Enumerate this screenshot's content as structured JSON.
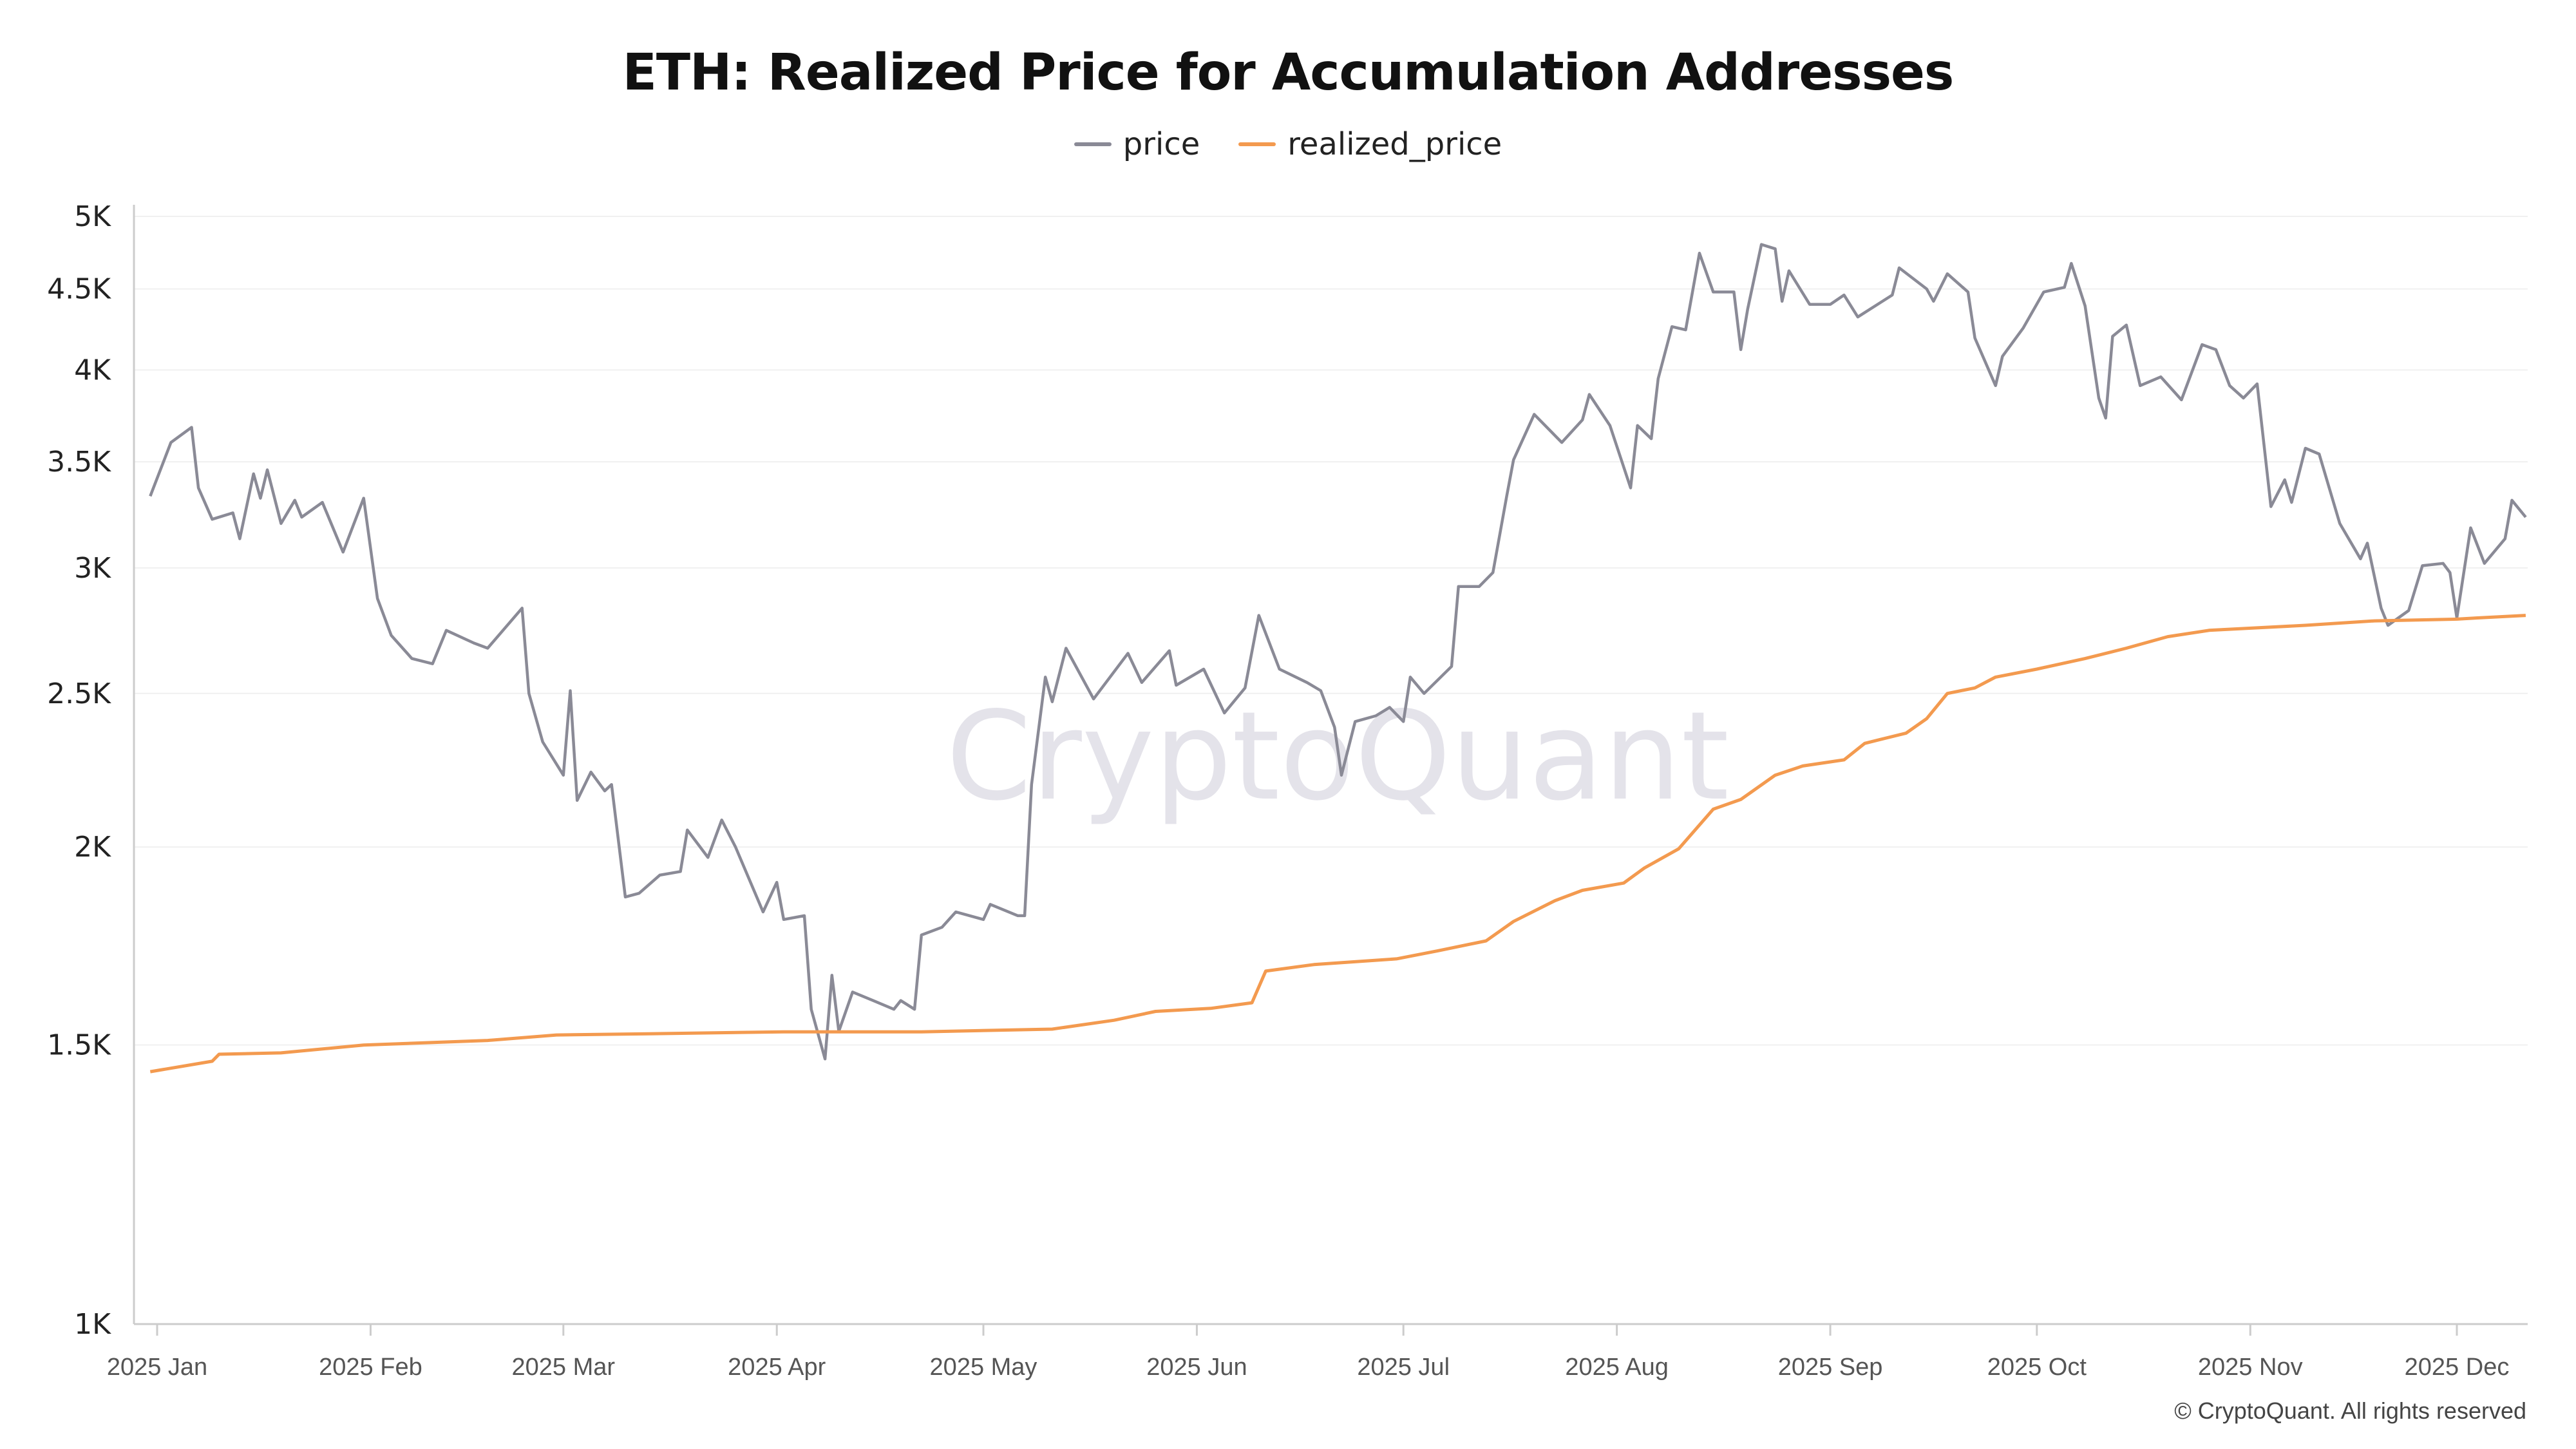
{
  "chart_data": {
    "type": "line",
    "title": "ETH: Realized Price for Accumulation Addresses",
    "y_scale": "log",
    "ylim": [
      1000,
      5000
    ],
    "xlim": [
      "2024-12-31",
      "2025-12-11"
    ],
    "grid": true,
    "legend_placement": "top",
    "y_ticks": [
      {
        "v": 1000,
        "label": "1K"
      },
      {
        "v": 1500,
        "label": "1.5K"
      },
      {
        "v": 2000,
        "label": "2K"
      },
      {
        "v": 2500,
        "label": "2.5K"
      },
      {
        "v": 3000,
        "label": "3K"
      },
      {
        "v": 3500,
        "label": "3.5K"
      },
      {
        "v": 4000,
        "label": "4K"
      },
      {
        "v": 4500,
        "label": "4.5K"
      },
      {
        "v": 5000,
        "label": "5K"
      }
    ],
    "x_ticks": [
      {
        "d": "2025-01-01",
        "label": "2025 Jan"
      },
      {
        "d": "2025-02-01",
        "label": "2025 Feb"
      },
      {
        "d": "2025-03-01",
        "label": "2025 Mar"
      },
      {
        "d": "2025-04-01",
        "label": "2025 Apr"
      },
      {
        "d": "2025-05-01",
        "label": "2025 May"
      },
      {
        "d": "2025-06-01",
        "label": "2025 Jun"
      },
      {
        "d": "2025-07-01",
        "label": "2025 Jul"
      },
      {
        "d": "2025-08-01",
        "label": "2025 Aug"
      },
      {
        "d": "2025-09-01",
        "label": "2025 Sep"
      },
      {
        "d": "2025-10-01",
        "label": "2025 Oct"
      },
      {
        "d": "2025-11-01",
        "label": "2025 Nov"
      },
      {
        "d": "2025-12-01",
        "label": "2025 Dec"
      }
    ],
    "series": [
      {
        "name": "price",
        "color": "#8a8a96",
        "points": [
          [
            "2024-12-31",
            3330
          ],
          [
            "2025-01-03",
            3600
          ],
          [
            "2025-01-06",
            3680
          ],
          [
            "2025-01-07",
            3370
          ],
          [
            "2025-01-09",
            3220
          ],
          [
            "2025-01-12",
            3250
          ],
          [
            "2025-01-13",
            3130
          ],
          [
            "2025-01-15",
            3440
          ],
          [
            "2025-01-16",
            3320
          ],
          [
            "2025-01-17",
            3460
          ],
          [
            "2025-01-19",
            3200
          ],
          [
            "2025-01-21",
            3310
          ],
          [
            "2025-01-22",
            3230
          ],
          [
            "2025-01-25",
            3300
          ],
          [
            "2025-01-28",
            3070
          ],
          [
            "2025-01-31",
            3320
          ],
          [
            "2025-02-02",
            2870
          ],
          [
            "2025-02-04",
            2720
          ],
          [
            "2025-02-07",
            2630
          ],
          [
            "2025-02-10",
            2610
          ],
          [
            "2025-02-12",
            2740
          ],
          [
            "2025-02-16",
            2690
          ],
          [
            "2025-02-18",
            2670
          ],
          [
            "2025-02-23",
            2830
          ],
          [
            "2025-02-24",
            2500
          ],
          [
            "2025-02-26",
            2330
          ],
          [
            "2025-03-01",
            2220
          ],
          [
            "2025-03-02",
            2510
          ],
          [
            "2025-03-03",
            2140
          ],
          [
            "2025-03-05",
            2230
          ],
          [
            "2025-03-07",
            2170
          ],
          [
            "2025-03-08",
            2190
          ],
          [
            "2025-03-10",
            1860
          ],
          [
            "2025-03-12",
            1870
          ],
          [
            "2025-03-15",
            1920
          ],
          [
            "2025-03-18",
            1930
          ],
          [
            "2025-03-19",
            2050
          ],
          [
            "2025-03-22",
            1970
          ],
          [
            "2025-03-24",
            2080
          ],
          [
            "2025-03-26",
            2000
          ],
          [
            "2025-03-30",
            1820
          ],
          [
            "2025-04-01",
            1900
          ],
          [
            "2025-04-02",
            1800
          ],
          [
            "2025-04-05",
            1810
          ],
          [
            "2025-04-06",
            1580
          ],
          [
            "2025-04-08",
            1470
          ],
          [
            "2025-04-09",
            1660
          ],
          [
            "2025-04-10",
            1530
          ],
          [
            "2025-04-12",
            1620
          ],
          [
            "2025-04-15",
            1600
          ],
          [
            "2025-04-18",
            1580
          ],
          [
            "2025-04-19",
            1600
          ],
          [
            "2025-04-21",
            1580
          ],
          [
            "2025-04-22",
            1760
          ],
          [
            "2025-04-25",
            1780
          ],
          [
            "2025-04-27",
            1820
          ],
          [
            "2025-05-01",
            1800
          ],
          [
            "2025-05-02",
            1840
          ],
          [
            "2025-05-06",
            1810
          ],
          [
            "2025-05-07",
            1810
          ],
          [
            "2025-05-08",
            2190
          ],
          [
            "2025-05-10",
            2560
          ],
          [
            "2025-05-11",
            2470
          ],
          [
            "2025-05-13",
            2670
          ],
          [
            "2025-05-17",
            2480
          ],
          [
            "2025-05-22",
            2650
          ],
          [
            "2025-05-24",
            2540
          ],
          [
            "2025-05-28",
            2660
          ],
          [
            "2025-05-29",
            2530
          ],
          [
            "2025-06-02",
            2590
          ],
          [
            "2025-06-05",
            2430
          ],
          [
            "2025-06-08",
            2520
          ],
          [
            "2025-06-10",
            2800
          ],
          [
            "2025-06-13",
            2590
          ],
          [
            "2025-06-17",
            2540
          ],
          [
            "2025-06-19",
            2510
          ],
          [
            "2025-06-21",
            2380
          ],
          [
            "2025-06-22",
            2220
          ],
          [
            "2025-06-24",
            2400
          ],
          [
            "2025-06-27",
            2420
          ],
          [
            "2025-06-29",
            2450
          ],
          [
            "2025-07-01",
            2400
          ],
          [
            "2025-07-02",
            2560
          ],
          [
            "2025-07-04",
            2500
          ],
          [
            "2025-07-08",
            2600
          ],
          [
            "2025-07-09",
            2920
          ],
          [
            "2025-07-12",
            2920
          ],
          [
            "2025-07-14",
            2980
          ],
          [
            "2025-07-16",
            3330
          ],
          [
            "2025-07-17",
            3510
          ],
          [
            "2025-07-20",
            3750
          ],
          [
            "2025-07-24",
            3600
          ],
          [
            "2025-07-27",
            3720
          ],
          [
            "2025-07-28",
            3860
          ],
          [
            "2025-07-31",
            3690
          ],
          [
            "2025-08-03",
            3370
          ],
          [
            "2025-08-04",
            3690
          ],
          [
            "2025-08-06",
            3620
          ],
          [
            "2025-08-07",
            3950
          ],
          [
            "2025-08-09",
            4260
          ],
          [
            "2025-08-11",
            4240
          ],
          [
            "2025-08-13",
            4740
          ],
          [
            "2025-08-15",
            4480
          ],
          [
            "2025-08-18",
            4480
          ],
          [
            "2025-08-19",
            4120
          ],
          [
            "2025-08-20",
            4370
          ],
          [
            "2025-08-22",
            4800
          ],
          [
            "2025-08-24",
            4770
          ],
          [
            "2025-08-25",
            4420
          ],
          [
            "2025-08-26",
            4620
          ],
          [
            "2025-08-29",
            4400
          ],
          [
            "2025-09-01",
            4400
          ],
          [
            "2025-09-03",
            4460
          ],
          [
            "2025-09-05",
            4320
          ],
          [
            "2025-09-10",
            4460
          ],
          [
            "2025-09-11",
            4640
          ],
          [
            "2025-09-15",
            4500
          ],
          [
            "2025-09-16",
            4420
          ],
          [
            "2025-09-18",
            4600
          ],
          [
            "2025-09-21",
            4480
          ],
          [
            "2025-09-22",
            4190
          ],
          [
            "2025-09-25",
            3910
          ],
          [
            "2025-09-26",
            4080
          ],
          [
            "2025-09-29",
            4250
          ],
          [
            "2025-10-02",
            4480
          ],
          [
            "2025-10-05",
            4510
          ],
          [
            "2025-10-06",
            4670
          ],
          [
            "2025-10-08",
            4390
          ],
          [
            "2025-10-10",
            3840
          ],
          [
            "2025-10-11",
            3730
          ],
          [
            "2025-10-12",
            4200
          ],
          [
            "2025-10-14",
            4270
          ],
          [
            "2025-10-16",
            3910
          ],
          [
            "2025-10-19",
            3960
          ],
          [
            "2025-10-22",
            3830
          ],
          [
            "2025-10-25",
            4150
          ],
          [
            "2025-10-27",
            4120
          ],
          [
            "2025-10-29",
            3910
          ],
          [
            "2025-10-31",
            3840
          ],
          [
            "2025-11-02",
            3920
          ],
          [
            "2025-11-04",
            3280
          ],
          [
            "2025-11-06",
            3410
          ],
          [
            "2025-11-07",
            3300
          ],
          [
            "2025-11-09",
            3570
          ],
          [
            "2025-11-11",
            3540
          ],
          [
            "2025-11-14",
            3200
          ],
          [
            "2025-11-17",
            3040
          ],
          [
            "2025-11-18",
            3110
          ],
          [
            "2025-11-20",
            2830
          ],
          [
            "2025-11-21",
            2760
          ],
          [
            "2025-11-24",
            2820
          ],
          [
            "2025-11-26",
            3010
          ],
          [
            "2025-11-29",
            3020
          ],
          [
            "2025-11-30",
            2980
          ],
          [
            "2025-12-01",
            2790
          ],
          [
            "2025-12-03",
            3180
          ],
          [
            "2025-12-05",
            3020
          ],
          [
            "2025-12-08",
            3130
          ],
          [
            "2025-12-09",
            3310
          ],
          [
            "2025-12-11",
            3230
          ]
        ]
      },
      {
        "name": "realized_price",
        "color": "#f39a4f",
        "points": [
          [
            "2024-12-31",
            1443
          ],
          [
            "2025-01-09",
            1465
          ],
          [
            "2025-01-10",
            1480
          ],
          [
            "2025-01-19",
            1483
          ],
          [
            "2025-01-31",
            1500
          ],
          [
            "2025-02-18",
            1510
          ],
          [
            "2025-02-28",
            1522
          ],
          [
            "2025-03-15",
            1525
          ],
          [
            "2025-04-02",
            1529
          ],
          [
            "2025-04-22",
            1529
          ],
          [
            "2025-05-11",
            1535
          ],
          [
            "2025-05-20",
            1555
          ],
          [
            "2025-05-26",
            1575
          ],
          [
            "2025-06-03",
            1582
          ],
          [
            "2025-06-09",
            1595
          ],
          [
            "2025-06-11",
            1670
          ],
          [
            "2025-06-18",
            1686
          ],
          [
            "2025-06-30",
            1700
          ],
          [
            "2025-07-06",
            1720
          ],
          [
            "2025-07-13",
            1745
          ],
          [
            "2025-07-17",
            1795
          ],
          [
            "2025-07-23",
            1850
          ],
          [
            "2025-07-27",
            1878
          ],
          [
            "2025-08-02",
            1898
          ],
          [
            "2025-08-05",
            1940
          ],
          [
            "2025-08-10",
            1995
          ],
          [
            "2025-08-15",
            2113
          ],
          [
            "2025-08-19",
            2143
          ],
          [
            "2025-08-24",
            2220
          ],
          [
            "2025-08-28",
            2250
          ],
          [
            "2025-09-03",
            2270
          ],
          [
            "2025-09-06",
            2325
          ],
          [
            "2025-09-12",
            2360
          ],
          [
            "2025-09-15",
            2410
          ],
          [
            "2025-09-18",
            2500
          ],
          [
            "2025-09-22",
            2520
          ],
          [
            "2025-09-25",
            2560
          ],
          [
            "2025-10-01",
            2590
          ],
          [
            "2025-10-08",
            2630
          ],
          [
            "2025-10-14",
            2670
          ],
          [
            "2025-10-20",
            2715
          ],
          [
            "2025-10-26",
            2740
          ],
          [
            "2025-11-02",
            2750
          ],
          [
            "2025-11-09",
            2760
          ],
          [
            "2025-11-19",
            2778
          ],
          [
            "2025-12-01",
            2785
          ],
          [
            "2025-12-04",
            2790
          ],
          [
            "2025-12-11",
            2800
          ]
        ]
      }
    ]
  },
  "watermark": "CryptoQuant",
  "copyright": "© CryptoQuant. All rights reserved"
}
